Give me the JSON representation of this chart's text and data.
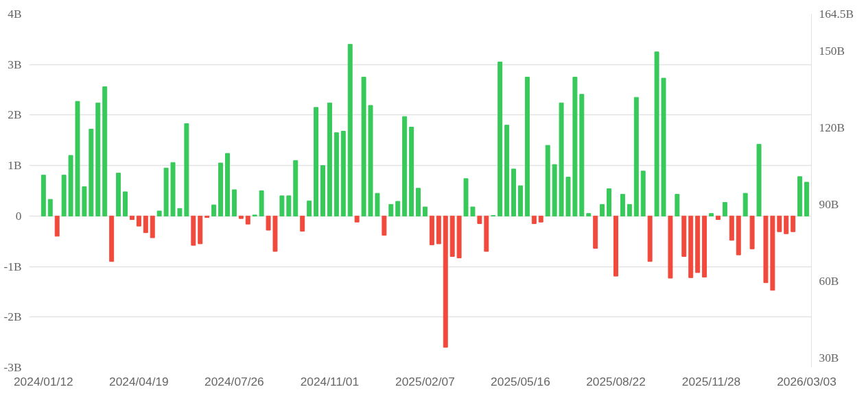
{
  "chart_data": {
    "type": "bar",
    "categories": [
      "2024/01/12",
      null,
      null,
      null,
      null,
      null,
      null,
      null,
      null,
      null,
      null,
      null,
      null,
      null,
      "2024/04/19",
      null,
      null,
      null,
      null,
      null,
      null,
      null,
      null,
      null,
      null,
      null,
      null,
      null,
      "2024/07/26",
      null,
      null,
      null,
      null,
      null,
      null,
      null,
      null,
      null,
      null,
      null,
      null,
      null,
      "2024/11/01",
      null,
      null,
      null,
      null,
      null,
      null,
      null,
      null,
      null,
      null,
      null,
      null,
      null,
      "2025/02/07",
      null,
      null,
      null,
      null,
      null,
      null,
      null,
      null,
      null,
      null,
      null,
      null,
      null,
      "2025/05/16",
      null,
      null,
      null,
      null,
      null,
      null,
      null,
      null,
      null,
      null,
      null,
      null,
      null,
      "2025/08/22",
      null,
      null,
      null,
      null,
      null,
      null,
      null,
      null,
      null,
      null,
      null,
      null,
      null,
      "2025/11/28",
      null,
      null,
      null,
      null,
      null,
      null,
      null,
      null,
      null,
      null,
      null,
      null,
      null,
      "2026/03/03"
    ],
    "values": [
      0.81,
      0.33,
      -0.4,
      0.81,
      1.2,
      2.27,
      0.58,
      1.72,
      2.24,
      2.56,
      -0.9,
      0.85,
      0.48,
      -0.07,
      -0.2,
      -0.33,
      -0.43,
      0.1,
      0.95,
      1.06,
      0.15,
      1.83,
      -0.58,
      -0.55,
      -0.03,
      0.22,
      1.05,
      1.24,
      0.52,
      -0.05,
      -0.16,
      0.02,
      0.5,
      -0.28,
      -0.7,
      0.4,
      0.4,
      1.1,
      -0.3,
      0.3,
      2.15,
      1.0,
      2.24,
      1.65,
      1.68,
      3.4,
      -0.12,
      2.75,
      2.19,
      0.45,
      -0.38,
      0.23,
      0.29,
      1.97,
      1.76,
      0.55,
      0.18,
      -0.57,
      -0.55,
      -2.6,
      -0.8,
      -0.83,
      0.74,
      0.18,
      -0.15,
      -0.7,
      0.01,
      3.05,
      1.8,
      0.93,
      0.6,
      2.75,
      -0.15,
      -0.12,
      1.4,
      1.02,
      2.24,
      0.77,
      2.75,
      2.41,
      0.05,
      -0.64,
      0.23,
      0.54,
      -1.19,
      0.43,
      0.23,
      2.35,
      0.89,
      -0.9,
      3.25,
      2.73,
      -1.23,
      0.43,
      -0.8,
      -1.22,
      -1.12,
      -1.21,
      0.05,
      -0.07,
      0.27,
      -0.48,
      -0.77,
      0.45,
      -0.65,
      1.42,
      -1.32,
      -1.47,
      -0.31,
      -0.35,
      -0.31,
      0.78,
      0.67
    ],
    "colors": [
      "#37c95a",
      "#37c95a",
      "#f14a3d",
      "#37c95a",
      "#37c95a",
      "#37c95a",
      "#37c95a",
      "#37c95a",
      "#37c95a",
      "#37c95a",
      "#f14a3d",
      "#37c95a",
      "#37c95a",
      "#f14a3d",
      "#f14a3d",
      "#f14a3d",
      "#f14a3d",
      "#37c95a",
      "#37c95a",
      "#37c95a",
      "#37c95a",
      "#37c95a",
      "#f14a3d",
      "#f14a3d",
      "#f14a3d",
      "#37c95a",
      "#37c95a",
      "#37c95a",
      "#37c95a",
      "#f14a3d",
      "#f14a3d",
      "#37c95a",
      "#37c95a",
      "#f14a3d",
      "#f14a3d",
      "#37c95a",
      "#37c95a",
      "#37c95a",
      "#f14a3d",
      "#37c95a",
      "#37c95a",
      "#37c95a",
      "#37c95a",
      "#37c95a",
      "#37c95a",
      "#37c95a",
      "#f14a3d",
      "#37c95a",
      "#37c95a",
      "#37c95a",
      "#f14a3d",
      "#37c95a",
      "#37c95a",
      "#37c95a",
      "#37c95a",
      "#37c95a",
      "#37c95a",
      "#f14a3d",
      "#f14a3d",
      "#f14a3d",
      "#f14a3d",
      "#f14a3d",
      "#37c95a",
      "#37c95a",
      "#f14a3d",
      "#f14a3d",
      "#37c95a",
      "#37c95a",
      "#37c95a",
      "#37c95a",
      "#37c95a",
      "#37c95a",
      "#f14a3d",
      "#f14a3d",
      "#37c95a",
      "#37c95a",
      "#37c95a",
      "#37c95a",
      "#37c95a",
      "#37c95a",
      "#37c95a",
      "#f14a3d",
      "#37c95a",
      "#37c95a",
      "#f14a3d",
      "#37c95a",
      "#37c95a",
      "#37c95a",
      "#37c95a",
      "#f14a3d",
      "#37c95a",
      "#37c95a",
      "#f14a3d",
      "#37c95a",
      "#f14a3d",
      "#f14a3d",
      "#f14a3d",
      "#f14a3d",
      "#37c95a",
      "#f14a3d",
      "#37c95a",
      "#f14a3d",
      "#f14a3d",
      "#37c95a",
      "#f14a3d",
      "#37c95a",
      "#f14a3d",
      "#f14a3d",
      "#f14a3d",
      "#f14a3d",
      "#f14a3d",
      "#37c95a",
      "#37c95a"
    ],
    "ylim": [
      -3,
      4
    ],
    "yticks": [
      {
        "value": -3,
        "label": "-3B"
      },
      {
        "value": -2,
        "label": "-2B"
      },
      {
        "value": -1,
        "label": "-1B"
      },
      0,
      {
        "value": 1,
        "label": "1B"
      },
      {
        "value": 2,
        "label": "2B"
      },
      {
        "value": 3,
        "label": "3B"
      },
      {
        "value": 4,
        "label": "4B"
      }
    ],
    "y2lim": [
      26.2,
      164.5
    ],
    "y2ticks": [
      {
        "value": 30,
        "label": "30B"
      },
      {
        "value": 60,
        "label": "60B"
      },
      {
        "value": 90,
        "label": "90B"
      },
      {
        "value": 120,
        "label": "120B"
      },
      {
        "value": 150,
        "label": "150B"
      },
      {
        "value": 164.5,
        "label": "164.5B"
      }
    ],
    "grid": "y"
  }
}
